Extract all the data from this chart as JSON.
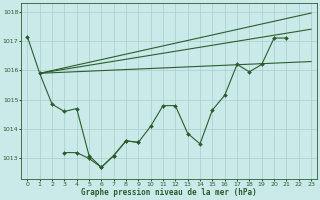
{
  "title": "Graphe pression niveau de la mer (hPa)",
  "bg_color": "#caeaea",
  "grid_color": "#a8cccc",
  "line_color": "#2d5c2d",
  "marker_color": "#2d5c2d",
  "x_ticks": [
    0,
    1,
    2,
    3,
    4,
    5,
    6,
    7,
    8,
    9,
    10,
    11,
    12,
    13,
    14,
    15,
    16,
    17,
    18,
    19,
    20,
    21,
    22,
    23
  ],
  "ylim": [
    1012.3,
    1018.3
  ],
  "yticks": [
    1013,
    1014,
    1015,
    1016,
    1017,
    1018
  ],
  "s1_x": [
    0,
    1,
    2,
    3,
    4,
    5,
    6,
    7,
    8,
    9,
    10,
    11,
    12,
    13,
    14,
    15,
    16,
    17,
    18,
    19,
    20,
    21,
    22,
    23
  ],
  "s1_y": [
    1017.15,
    1015.9,
    1014.85,
    1014.6,
    1014.7,
    1013.1,
    1012.7,
    1013.1,
    1013.6,
    1013.55,
    1014.1,
    1014.8,
    1014.8,
    1013.85,
    1013.5,
    1014.65,
    1015.15,
    1016.2,
    1015.95,
    1016.2,
    1017.1,
    1017.1,
    null,
    null
  ],
  "s2_x": [
    3,
    4,
    5,
    6,
    7,
    8,
    9
  ],
  "s2_y": [
    1013.2,
    1013.2,
    1013.0,
    1012.7,
    1013.1,
    1013.6,
    1013.55
  ],
  "sl1": {
    "x": [
      1,
      23
    ],
    "y": [
      1015.9,
      1017.95
    ]
  },
  "sl2": {
    "x": [
      1,
      23
    ],
    "y": [
      1015.9,
      1017.4
    ]
  },
  "sl3": {
    "x": [
      1,
      23
    ],
    "y": [
      1015.9,
      1016.3
    ]
  }
}
